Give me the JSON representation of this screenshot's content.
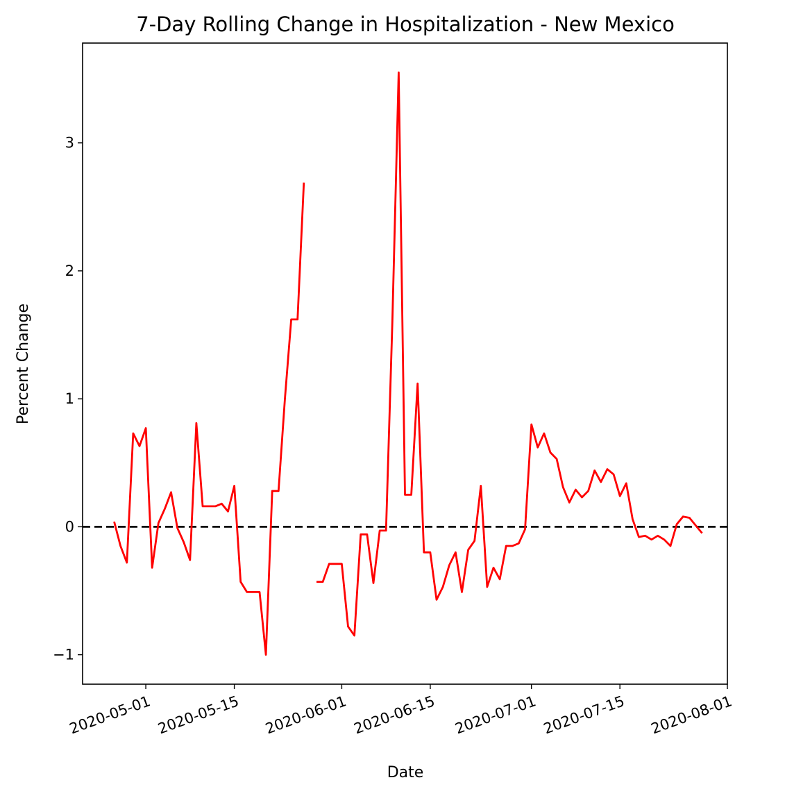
{
  "chart_data": {
    "type": "line",
    "title": "7-Day Rolling Change in Hospitalization - New Mexico",
    "xlabel": "Date",
    "ylabel": "Percent Change",
    "xlim": [
      "2020-04-21",
      "2020-08-01"
    ],
    "ylim": [
      -1.23,
      3.78
    ],
    "x_ticks": [
      "2020-05-01",
      "2020-05-15",
      "2020-06-01",
      "2020-06-15",
      "2020-07-01",
      "2020-07-15",
      "2020-08-01"
    ],
    "y_ticks": [
      -1,
      0,
      1,
      2,
      3
    ],
    "y_tick_labels": [
      "−1",
      "0",
      "1",
      "2",
      "3"
    ],
    "reference_line": {
      "y": 0,
      "style": "dashed",
      "color": "#000000"
    },
    "grid": false,
    "series": [
      {
        "color": "#ff0000",
        "points": [
          [
            "2020-04-26",
            0.04
          ],
          [
            "2020-04-27",
            -0.15
          ],
          [
            "2020-04-28",
            -0.28
          ],
          [
            "2020-04-29",
            0.73
          ],
          [
            "2020-04-30",
            0.63
          ],
          [
            "2020-05-01",
            0.77
          ],
          [
            "2020-05-02",
            -0.32
          ],
          [
            "2020-05-03",
            0.03
          ],
          [
            "2020-05-04",
            0.14
          ],
          [
            "2020-05-05",
            0.27
          ],
          [
            "2020-05-06",
            -0.01
          ],
          [
            "2020-05-07",
            -0.12
          ],
          [
            "2020-05-08",
            -0.26
          ],
          [
            "2020-05-09",
            0.81
          ],
          [
            "2020-05-10",
            0.16
          ],
          [
            "2020-05-11",
            0.16
          ],
          [
            "2020-05-12",
            0.16
          ],
          [
            "2020-05-13",
            0.18
          ],
          [
            "2020-05-14",
            0.12
          ],
          [
            "2020-05-15",
            0.32
          ],
          [
            "2020-05-16",
            -0.43
          ],
          [
            "2020-05-17",
            -0.51
          ],
          [
            "2020-05-18",
            -0.51
          ],
          [
            "2020-05-19",
            -0.51
          ],
          [
            "2020-05-20",
            -1.0
          ],
          [
            "2020-05-21",
            0.28
          ],
          [
            "2020-05-22",
            0.28
          ],
          [
            "2020-05-23",
            1.0
          ],
          [
            "2020-05-24",
            1.62
          ],
          [
            "2020-05-25",
            1.62
          ],
          [
            "2020-05-26",
            2.69
          ],
          [
            "2020-05-27",
            null
          ],
          [
            "2020-05-28",
            -0.43
          ],
          [
            "2020-05-29",
            -0.43
          ],
          [
            "2020-05-30",
            -0.29
          ],
          [
            "2020-05-31",
            -0.29
          ],
          [
            "2020-06-01",
            -0.29
          ],
          [
            "2020-06-02",
            -0.78
          ],
          [
            "2020-06-03",
            -0.85
          ],
          [
            "2020-06-04",
            -0.06
          ],
          [
            "2020-06-05",
            -0.06
          ],
          [
            "2020-06-06",
            -0.44
          ],
          [
            "2020-06-07",
            -0.03
          ],
          [
            "2020-06-08",
            -0.03
          ],
          [
            "2020-06-09",
            1.6
          ],
          [
            "2020-06-10",
            3.55
          ],
          [
            "2020-06-11",
            0.25
          ],
          [
            "2020-06-12",
            0.25
          ],
          [
            "2020-06-13",
            1.12
          ],
          [
            "2020-06-14",
            -0.2
          ],
          [
            "2020-06-15",
            -0.2
          ],
          [
            "2020-06-16",
            -0.57
          ],
          [
            "2020-06-17",
            -0.47
          ],
          [
            "2020-06-18",
            -0.3
          ],
          [
            "2020-06-19",
            -0.2
          ],
          [
            "2020-06-20",
            -0.51
          ],
          [
            "2020-06-21",
            -0.18
          ],
          [
            "2020-06-22",
            -0.11
          ],
          [
            "2020-06-23",
            0.32
          ],
          [
            "2020-06-24",
            -0.47
          ],
          [
            "2020-06-25",
            -0.32
          ],
          [
            "2020-06-26",
            -0.41
          ],
          [
            "2020-06-27",
            -0.15
          ],
          [
            "2020-06-28",
            -0.15
          ],
          [
            "2020-06-29",
            -0.13
          ],
          [
            "2020-06-30",
            -0.02
          ],
          [
            "2020-07-01",
            0.8
          ],
          [
            "2020-07-02",
            0.62
          ],
          [
            "2020-07-03",
            0.73
          ],
          [
            "2020-07-04",
            0.58
          ],
          [
            "2020-07-05",
            0.53
          ],
          [
            "2020-07-06",
            0.31
          ],
          [
            "2020-07-07",
            0.19
          ],
          [
            "2020-07-08",
            0.29
          ],
          [
            "2020-07-09",
            0.23
          ],
          [
            "2020-07-10",
            0.28
          ],
          [
            "2020-07-11",
            0.44
          ],
          [
            "2020-07-12",
            0.35
          ],
          [
            "2020-07-13",
            0.45
          ],
          [
            "2020-07-14",
            0.41
          ],
          [
            "2020-07-15",
            0.24
          ],
          [
            "2020-07-16",
            0.34
          ],
          [
            "2020-07-17",
            0.06
          ],
          [
            "2020-07-18",
            -0.08
          ],
          [
            "2020-07-19",
            -0.07
          ],
          [
            "2020-07-20",
            -0.1
          ],
          [
            "2020-07-21",
            -0.07
          ],
          [
            "2020-07-22",
            -0.1
          ],
          [
            "2020-07-23",
            -0.15
          ],
          [
            "2020-07-24",
            0.02
          ],
          [
            "2020-07-25",
            0.08
          ],
          [
            "2020-07-26",
            0.07
          ],
          [
            "2020-07-27",
            0.01
          ],
          [
            "2020-07-28",
            -0.05
          ]
        ]
      }
    ]
  }
}
